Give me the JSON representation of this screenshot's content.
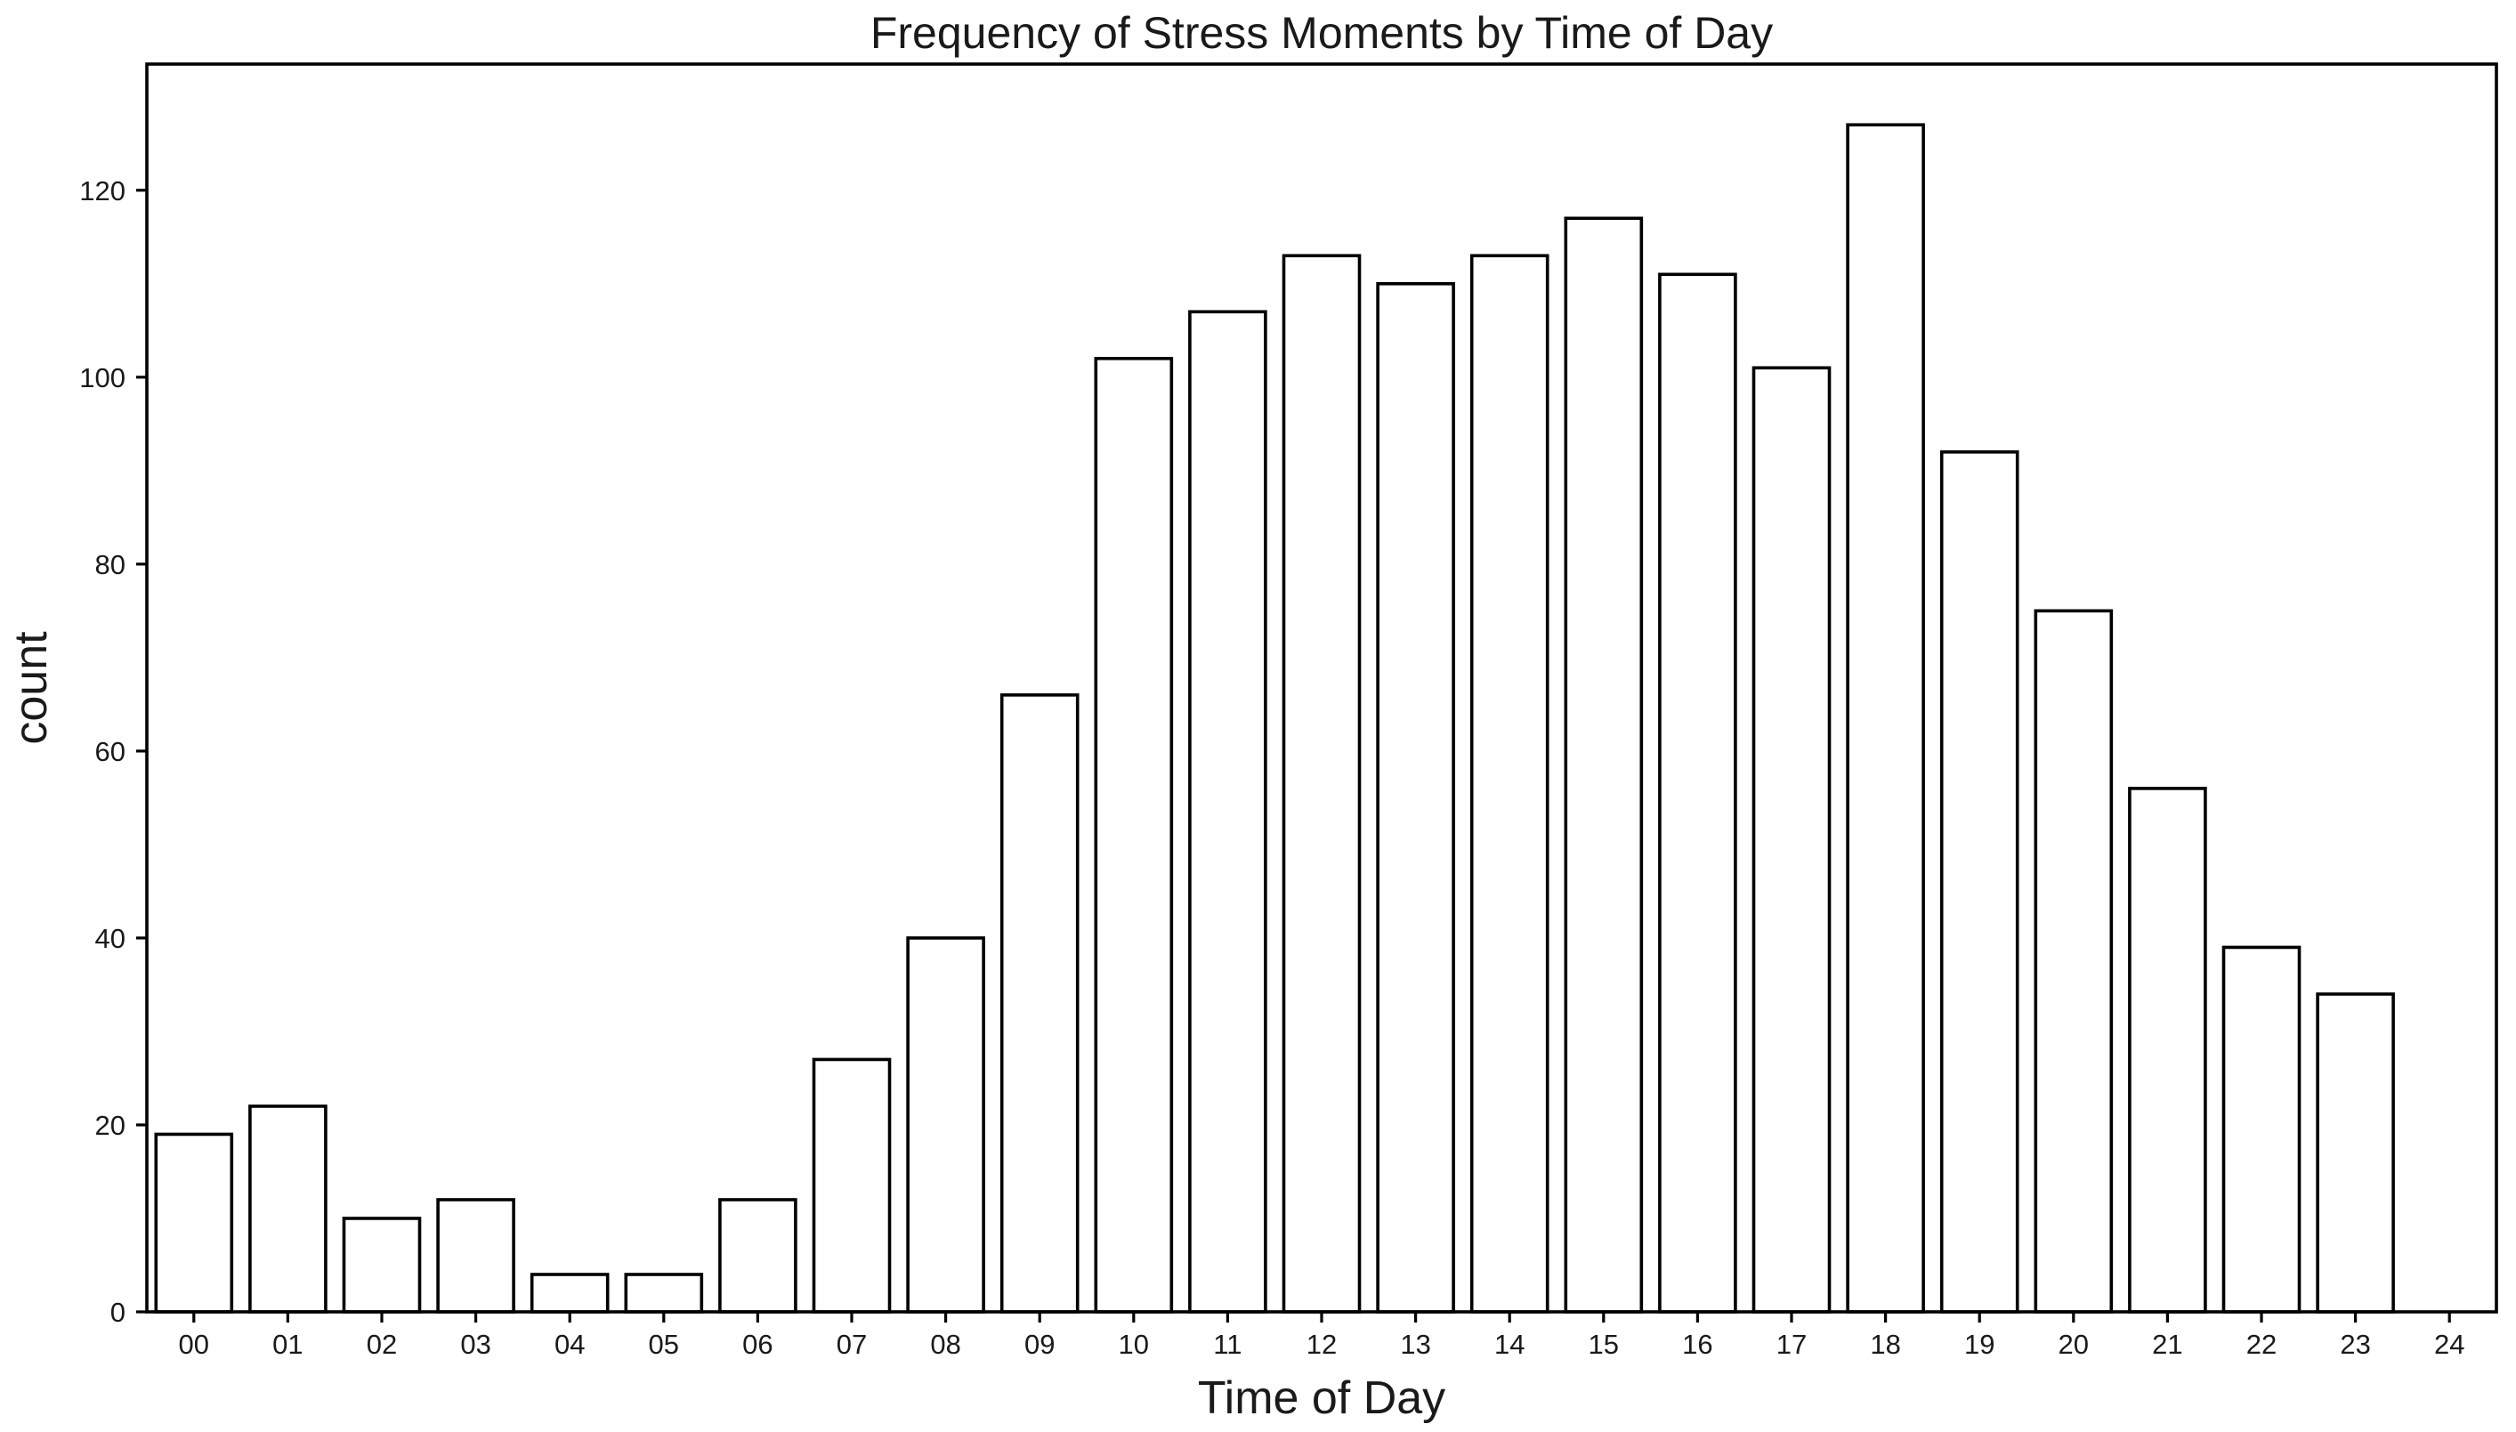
{
  "chart_data": {
    "type": "bar",
    "title": "Frequency of Stress Moments by Time of Day",
    "xlabel": "Time of Day",
    "ylabel": "count",
    "categories": [
      "00",
      "01",
      "02",
      "03",
      "04",
      "05",
      "06",
      "07",
      "08",
      "09",
      "10",
      "11",
      "12",
      "13",
      "14",
      "15",
      "16",
      "17",
      "18",
      "19",
      "20",
      "21",
      "22",
      "23",
      "24"
    ],
    "values": [
      19,
      22,
      10,
      12,
      4,
      4,
      12,
      27,
      40,
      66,
      102,
      107,
      113,
      110,
      113,
      117,
      111,
      101,
      127,
      92,
      75,
      56,
      39,
      34,
      0
    ],
    "y_ticks": [
      0,
      20,
      40,
      60,
      80,
      100,
      120
    ],
    "ylim": [
      0,
      133.5
    ],
    "grid": false,
    "legend": "none",
    "colors": {
      "bar_fill": "#ffffff",
      "bar_edge": "#000000",
      "text": "#1a1a1a",
      "frame": "#000000"
    }
  }
}
